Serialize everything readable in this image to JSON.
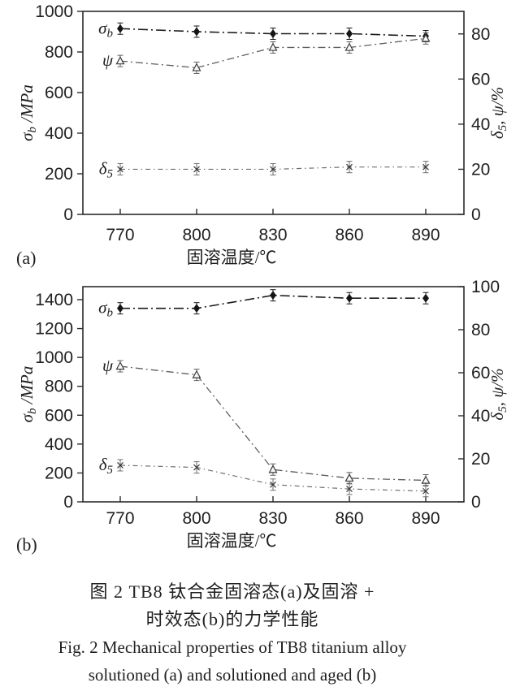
{
  "figure": {
    "caption": {
      "cn_line1": "图 2  TB8 钛合金固溶态(a)及固溶 +",
      "cn_line2": "时效态(b)的力学性能",
      "en_line1": "Fig. 2  Mechanical properties of TB8 titanium alloy",
      "en_line2": "solutioned (a) and solutioned and aged (b)"
    },
    "ink_color": "#2b2b2b"
  },
  "chart_data": [
    {
      "id": "a",
      "type": "line",
      "panel_label": "(a)",
      "xlabel": "固溶温度/℃",
      "x": [
        770,
        800,
        830,
        860,
        890
      ],
      "axes": {
        "left": {
          "label": {
            "symbol": "σ",
            "sub": "b",
            "rest": " /MPa"
          },
          "ticks": [
            0,
            200,
            400,
            600,
            800,
            1000
          ],
          "lim": [
            0,
            1000
          ]
        },
        "right": {
          "label": {
            "symbol": "δ",
            "sub": "5",
            "rest": ", ψ/%"
          },
          "ticks": [
            0,
            20,
            40,
            60,
            80
          ],
          "lim": [
            0,
            90
          ]
        }
      },
      "series": [
        {
          "name": "sigma-b",
          "label": {
            "symbol": "σ",
            "sub": "b"
          },
          "axis": "left",
          "marker": "diamond",
          "color": "#1a1a1a",
          "values": [
            915,
            900,
            890,
            890,
            878
          ]
        },
        {
          "name": "psi",
          "label": {
            "symbol": "ψ",
            "sub": ""
          },
          "axis": "right",
          "marker": "triangle",
          "color": "#5f5f5f",
          "values": [
            68,
            65,
            74,
            74,
            78
          ]
        },
        {
          "name": "delta-5",
          "label": {
            "symbol": "δ",
            "sub": "5"
          },
          "axis": "right",
          "marker": "cross",
          "color": "#6e6e6e",
          "values": [
            20,
            20,
            20,
            21,
            21
          ]
        }
      ]
    },
    {
      "id": "b",
      "type": "line",
      "panel_label": "(b)",
      "xlabel": "固溶温度/℃",
      "x": [
        770,
        800,
        830,
        860,
        890
      ],
      "axes": {
        "left": {
          "label": {
            "symbol": "σ",
            "sub": "b",
            "rest": " /MPa"
          },
          "ticks": [
            0,
            200,
            400,
            600,
            800,
            1000,
            1200,
            1400
          ],
          "lim": [
            0,
            1490
          ]
        },
        "right": {
          "label": {
            "symbol": "δ",
            "sub": "5",
            "rest": ", ψ/%"
          },
          "ticks": [
            0,
            20,
            40,
            60,
            80,
            100
          ],
          "lim": [
            0,
            100
          ]
        }
      },
      "series": [
        {
          "name": "sigma-b",
          "label": {
            "symbol": "σ",
            "sub": "b"
          },
          "axis": "left",
          "marker": "diamond",
          "color": "#1a1a1a",
          "values": [
            1340,
            1340,
            1430,
            1410,
            1410
          ]
        },
        {
          "name": "psi",
          "label": {
            "symbol": "ψ",
            "sub": ""
          },
          "axis": "right",
          "marker": "triangle",
          "color": "#5f5f5f",
          "values": [
            63,
            59,
            15,
            11,
            10
          ]
        },
        {
          "name": "delta-5",
          "label": {
            "symbol": "δ",
            "sub": "5"
          },
          "axis": "right",
          "marker": "cross",
          "color": "#6e6e6e",
          "values": [
            17,
            16,
            8,
            6,
            5
          ]
        }
      ]
    }
  ]
}
